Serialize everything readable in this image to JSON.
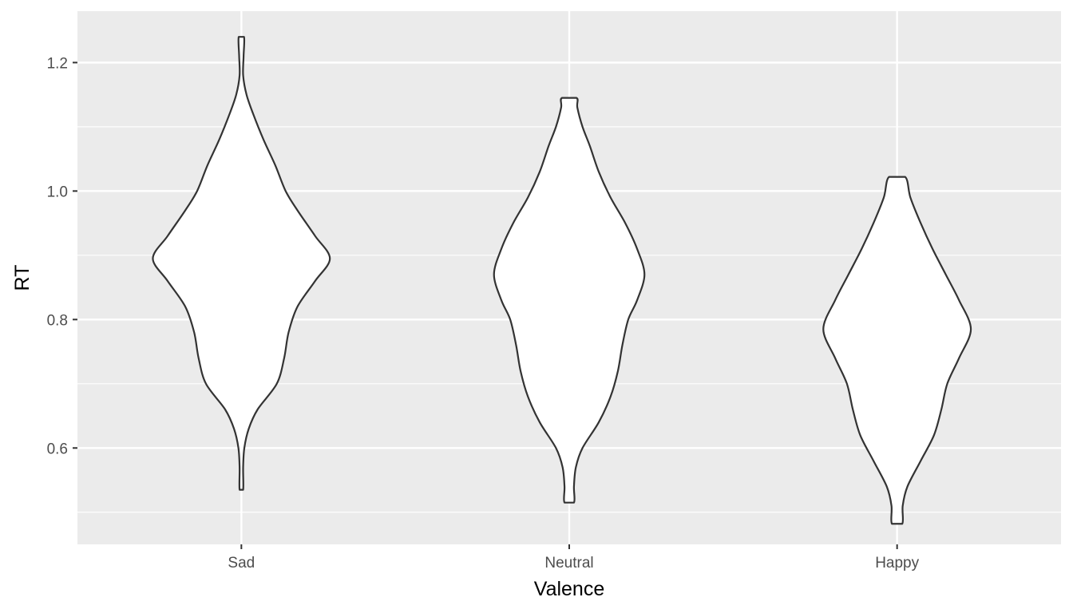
{
  "chart_data": {
    "type": "violin",
    "xlabel": "Valence",
    "ylabel": "RT",
    "categories": [
      "Sad",
      "Neutral",
      "Happy"
    ],
    "ylim": [
      0.45,
      1.28
    ],
    "yticks": [
      0.6,
      0.8,
      1.0,
      1.2
    ],
    "ytick_labels": [
      "0.6",
      "0.8",
      "1.0",
      "1.2"
    ],
    "grid": true,
    "panel_background": "#ebebeb",
    "grid_color": "#ffffff",
    "violin_fill": "#ffffff",
    "violin_stroke": "#333333",
    "violins": [
      {
        "category": "Sad",
        "min": 0.535,
        "max": 1.24,
        "profile": [
          [
            0.535,
            0.012
          ],
          [
            0.57,
            0.012
          ],
          [
            0.6,
            0.02
          ],
          [
            0.63,
            0.05
          ],
          [
            0.66,
            0.11
          ],
          [
            0.7,
            0.24
          ],
          [
            0.74,
            0.29
          ],
          [
            0.78,
            0.32
          ],
          [
            0.82,
            0.38
          ],
          [
            0.86,
            0.5
          ],
          [
            0.895,
            0.6
          ],
          [
            0.93,
            0.5
          ],
          [
            0.97,
            0.38
          ],
          [
            1.0,
            0.3
          ],
          [
            1.04,
            0.23
          ],
          [
            1.08,
            0.15
          ],
          [
            1.12,
            0.08
          ],
          [
            1.15,
            0.035
          ],
          [
            1.18,
            0.012
          ],
          [
            1.21,
            0.015
          ],
          [
            1.24,
            0.018
          ]
        ]
      },
      {
        "category": "Neutral",
        "min": 0.515,
        "max": 1.145,
        "profile": [
          [
            0.515,
            0.032
          ],
          [
            0.54,
            0.032
          ],
          [
            0.57,
            0.045
          ],
          [
            0.6,
            0.09
          ],
          [
            0.64,
            0.2
          ],
          [
            0.68,
            0.28
          ],
          [
            0.72,
            0.33
          ],
          [
            0.76,
            0.36
          ],
          [
            0.8,
            0.4
          ],
          [
            0.83,
            0.46
          ],
          [
            0.87,
            0.51
          ],
          [
            0.91,
            0.46
          ],
          [
            0.95,
            0.38
          ],
          [
            0.99,
            0.28
          ],
          [
            1.03,
            0.2
          ],
          [
            1.07,
            0.14
          ],
          [
            1.1,
            0.09
          ],
          [
            1.13,
            0.055
          ],
          [
            1.145,
            0.05
          ]
        ]
      },
      {
        "category": "Happy",
        "min": 0.482,
        "max": 1.022,
        "profile": [
          [
            0.482,
            0.035
          ],
          [
            0.51,
            0.038
          ],
          [
            0.54,
            0.07
          ],
          [
            0.58,
            0.16
          ],
          [
            0.62,
            0.25
          ],
          [
            0.66,
            0.3
          ],
          [
            0.7,
            0.34
          ],
          [
            0.74,
            0.42
          ],
          [
            0.785,
            0.5
          ],
          [
            0.83,
            0.42
          ],
          [
            0.87,
            0.33
          ],
          [
            0.91,
            0.24
          ],
          [
            0.95,
            0.16
          ],
          [
            0.99,
            0.09
          ],
          [
            1.022,
            0.055
          ]
        ]
      }
    ]
  }
}
